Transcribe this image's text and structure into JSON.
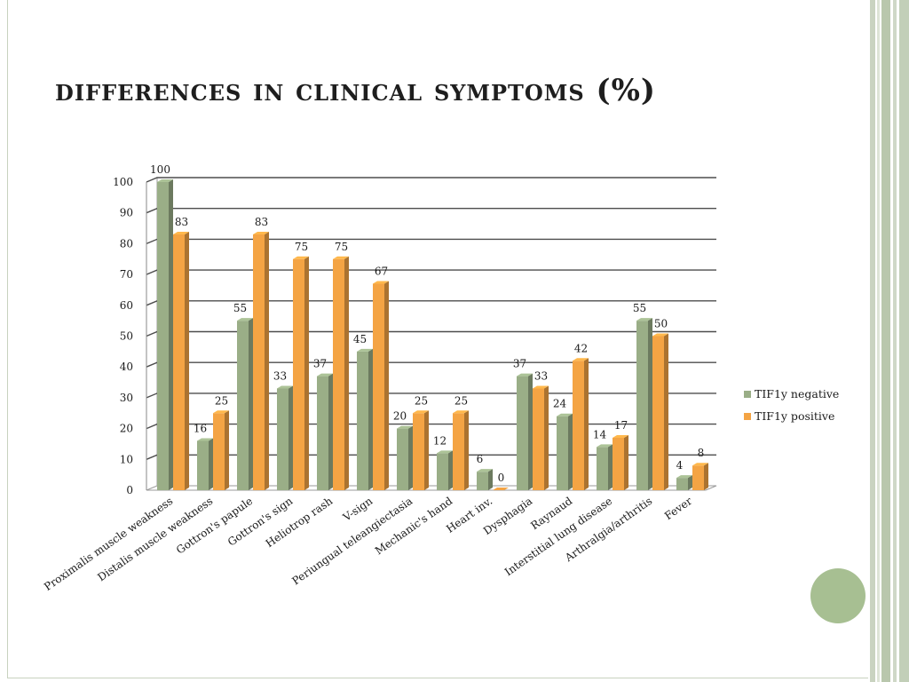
{
  "slide": {
    "title": "differences in clinical symptoms (%)"
  },
  "chart_data": {
    "type": "bar",
    "categories": [
      "Proximalis muscle weakness",
      "Distalis muscle weakness",
      "Gottron's papule",
      "Gottron's sign",
      "Heliotrop rash",
      "V-sign",
      "Periungual teleangiectasia",
      "Mechanic's hand",
      "Heart inv.",
      "Dysphagia",
      "Raynaud",
      "Interstitial lung disease",
      "Arthralgia/arthritis",
      "Fever"
    ],
    "series": [
      {
        "name": "TIF1y negative",
        "values": [
          100,
          16,
          55,
          33,
          37,
          45,
          20,
          12,
          6,
          37,
          24,
          14,
          55,
          4
        ],
        "color": "#9aae87"
      },
      {
        "name": "TIF1y positive",
        "values": [
          83,
          25,
          83,
          75,
          75,
          67,
          25,
          25,
          0,
          33,
          42,
          17,
          50,
          8
        ],
        "color": "#f4a444"
      }
    ],
    "ylim": [
      0,
      100
    ],
    "yticks": [
      0,
      10,
      20,
      30,
      40,
      50,
      60,
      70,
      80,
      90,
      100
    ],
    "grid": true,
    "legend": "right",
    "style": "3d-columns"
  }
}
